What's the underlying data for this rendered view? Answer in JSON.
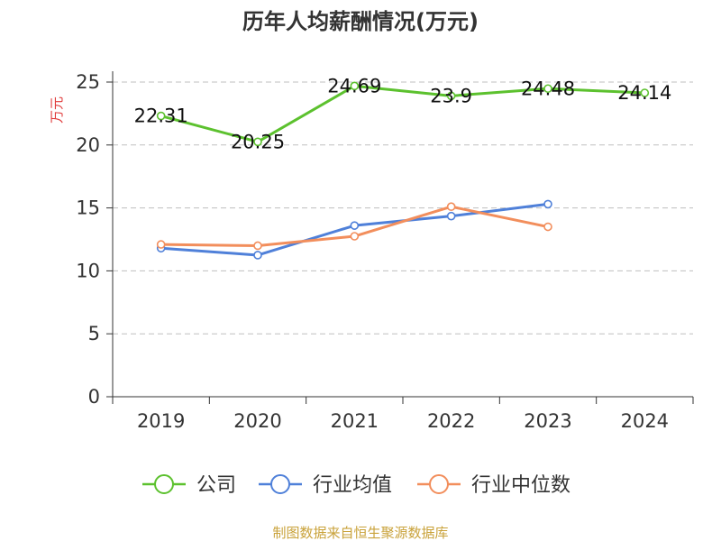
{
  "chart_data": {
    "type": "line",
    "title": "历年人均薪酬情况(万元)",
    "ylabel": "万元",
    "categories": [
      "2019",
      "2020",
      "2021",
      "2022",
      "2023",
      "2024"
    ],
    "ylim": [
      0,
      25
    ],
    "yticks": [
      0,
      5,
      10,
      15,
      20,
      25
    ],
    "grid": true,
    "legend_position": "bottom",
    "series": [
      {
        "name": "公司",
        "color": "#5cc12e",
        "values": [
          22.31,
          20.25,
          24.69,
          23.9,
          24.48,
          24.14
        ],
        "labels": [
          "22.31",
          "20.25",
          "24.69",
          "23.9",
          "24.48",
          "24.14"
        ]
      },
      {
        "name": "行业均值",
        "color": "#4f80d9",
        "values": [
          11.8,
          11.25,
          13.6,
          14.35,
          15.3,
          null
        ]
      },
      {
        "name": "行业中位数",
        "color": "#f28e5c",
        "values": [
          12.1,
          12.0,
          12.75,
          15.1,
          13.5,
          null
        ]
      }
    ],
    "source": "制图数据来自恒生聚源数据库"
  }
}
